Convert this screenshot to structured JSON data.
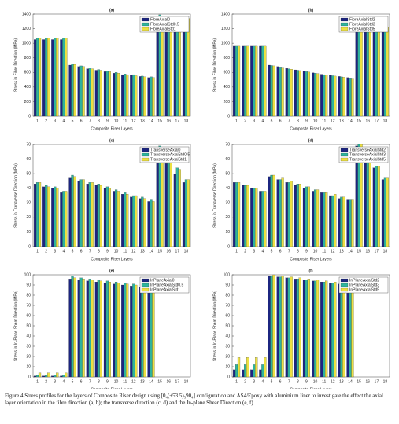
{
  "chart_data": [
    {
      "type": "bar",
      "title": "(a)",
      "xlabel": "Composite Riser Layers",
      "ylabel": "Stress in Fibre Direction (MPa)",
      "categories": [
        1,
        2,
        3,
        4,
        5,
        6,
        7,
        8,
        9,
        10,
        11,
        12,
        13,
        14,
        15,
        16,
        17,
        18
      ],
      "ylim": [
        0,
        1400
      ],
      "yticks": [
        0,
        200,
        400,
        600,
        800,
        1000,
        1200,
        1400
      ],
      "legend": "upper right",
      "series": [
        {
          "name": "FibreAxial0",
          "color": "#1c2580",
          "values": [
            1050,
            1050,
            1050,
            1050,
            700,
            680,
            650,
            630,
            610,
            590,
            570,
            560,
            545,
            530,
            1340,
            1330,
            1340,
            1320
          ]
        },
        {
          "name": "FibreAxialStd0.5",
          "color": "#2fb39c",
          "values": [
            1070,
            1070,
            1070,
            1070,
            720,
            690,
            660,
            640,
            620,
            600,
            580,
            570,
            550,
            540,
            1390,
            1360,
            1370,
            1350
          ]
        },
        {
          "name": "FibreAxialStd1",
          "color": "#ece042",
          "values": [
            1070,
            1070,
            1070,
            1070,
            710,
            680,
            650,
            630,
            610,
            590,
            570,
            555,
            540,
            530,
            1370,
            1350,
            1360,
            1340
          ]
        }
      ]
    },
    {
      "type": "bar",
      "title": "(b)",
      "xlabel": "Composite Riser Layers",
      "ylabel": "Stress in Fibre Direction (MPa)",
      "categories": [
        1,
        2,
        3,
        4,
        5,
        6,
        7,
        8,
        9,
        10,
        11,
        12,
        13,
        14,
        15,
        16,
        17,
        18
      ],
      "ylim": [
        0,
        1400
      ],
      "yticks": [
        0,
        200,
        400,
        600,
        800,
        1000,
        1200,
        1400
      ],
      "legend": "upper right",
      "series": [
        {
          "name": "FibreAxialStd2",
          "color": "#1c2580",
          "values": [
            970,
            970,
            970,
            970,
            700,
            680,
            655,
            635,
            615,
            595,
            575,
            560,
            545,
            530,
            1280,
            1260,
            1250,
            1240
          ]
        },
        {
          "name": "FibreAxialStd3",
          "color": "#2fb39c",
          "values": [
            970,
            970,
            970,
            970,
            695,
            675,
            650,
            630,
            610,
            590,
            570,
            555,
            540,
            525,
            1270,
            1250,
            1240,
            1230
          ]
        },
        {
          "name": "FibreAxialStd5",
          "color": "#ece042",
          "values": [
            970,
            970,
            970,
            970,
            690,
            670,
            645,
            625,
            605,
            585,
            565,
            550,
            535,
            520,
            1260,
            1240,
            1230,
            1220
          ]
        }
      ]
    },
    {
      "type": "bar",
      "title": "(c)",
      "xlabel": "Composite Riser Layers",
      "ylabel": "Stress in Transverse Direction (MPa)",
      "categories": [
        1,
        2,
        3,
        4,
        5,
        6,
        7,
        8,
        9,
        10,
        11,
        12,
        13,
        14,
        15,
        16,
        17,
        18
      ],
      "ylim": [
        0,
        70
      ],
      "yticks": [
        0,
        10,
        20,
        30,
        40,
        50,
        60,
        70
      ],
      "legend": "upper right",
      "series": [
        {
          "name": "TransverseAxial0",
          "color": "#1c2580",
          "values": [
            43,
            41,
            40,
            37,
            47,
            45,
            43,
            42,
            40,
            38,
            36,
            34,
            33,
            31,
            60,
            57,
            50,
            44
          ]
        },
        {
          "name": "TransverseAxialStd0.5",
          "color": "#2fb39c",
          "values": [
            44,
            42,
            41,
            38,
            49,
            46,
            44,
            43,
            41,
            39,
            37,
            35,
            34,
            32,
            69,
            61,
            54,
            46
          ]
        },
        {
          "name": "TransverseAxialStd1",
          "color": "#ece042",
          "values": [
            44,
            41,
            40,
            38,
            48,
            46,
            44,
            42,
            40,
            38,
            36,
            35,
            33,
            31,
            68,
            61,
            53,
            46
          ]
        }
      ]
    },
    {
      "type": "bar",
      "title": "(d)",
      "xlabel": "Composite Riser Layers",
      "ylabel": "Stress in Transverse Direction (MPa)",
      "categories": [
        1,
        2,
        3,
        4,
        5,
        6,
        7,
        8,
        9,
        10,
        11,
        12,
        13,
        14,
        15,
        16,
        17,
        18
      ],
      "ylim": [
        0,
        70
      ],
      "yticks": [
        0,
        10,
        20,
        30,
        40,
        50,
        60,
        70
      ],
      "legend": "upper right",
      "series": [
        {
          "name": "TransverseAxialStd2",
          "color": "#1c2580",
          "values": [
            44,
            42,
            40,
            38,
            48,
            46,
            44,
            42,
            40,
            38,
            37,
            35,
            33,
            32,
            69,
            60,
            54,
            46
          ]
        },
        {
          "name": "TransverseAxialStd3",
          "color": "#2fb39c",
          "values": [
            44,
            42,
            40,
            38,
            49,
            46,
            44,
            43,
            41,
            39,
            37,
            35,
            34,
            32,
            70,
            62,
            55,
            47
          ]
        },
        {
          "name": "TransverseAxialStd5",
          "color": "#ece042",
          "values": [
            44,
            42,
            40,
            38,
            49,
            47,
            45,
            43,
            41,
            39,
            37,
            36,
            34,
            32,
            70,
            62,
            55,
            47
          ]
        }
      ]
    },
    {
      "type": "bar",
      "title": "(e)",
      "xlabel": "Composite Riser Layers",
      "ylabel": "Stress in In-Plane Shear Direction (MPa)",
      "categories": [
        1,
        2,
        3,
        4,
        5,
        6,
        7,
        8,
        9,
        10,
        11,
        12,
        13,
        14,
        15,
        16,
        17,
        18
      ],
      "ylim": [
        0,
        100
      ],
      "yticks": [
        0,
        10,
        20,
        30,
        40,
        50,
        60,
        70,
        80,
        90,
        100
      ],
      "legend": "upper right",
      "series": [
        {
          "name": "InPlaneAxial0",
          "color": "#1c2580",
          "values": [
            1,
            1,
            1,
            1,
            96,
            95,
            94,
            93,
            92,
            91,
            90,
            89,
            88,
            87,
            0,
            0,
            0,
            0
          ]
        },
        {
          "name": "InPlaneAxialStd0.5",
          "color": "#2fb39c",
          "values": [
            2,
            2,
            2,
            2,
            99,
            97,
            96,
            95,
            94,
            93,
            92,
            91,
            90,
            89,
            0,
            0,
            0,
            0
          ]
        },
        {
          "name": "InPlaneAxialStd1",
          "color": "#ece042",
          "values": [
            4,
            4,
            4,
            4,
            97,
            96,
            95,
            94,
            93,
            92,
            91,
            90,
            89,
            88,
            0,
            0,
            0,
            0
          ]
        }
      ]
    },
    {
      "type": "bar",
      "title": "(f)",
      "xlabel": "Composite Riser Layers",
      "ylabel": "Stress in In-Plane Shear Direction (MPa)",
      "categories": [
        1,
        2,
        3,
        4,
        5,
        6,
        7,
        8,
        9,
        10,
        11,
        12,
        13,
        14,
        15,
        16,
        17,
        18
      ],
      "ylim": [
        0,
        100
      ],
      "yticks": [
        0,
        10,
        20,
        30,
        40,
        50,
        60,
        70,
        80,
        90,
        100
      ],
      "legend": "upper right",
      "series": [
        {
          "name": "InPlaneAxialStd2",
          "color": "#1c2580",
          "values": [
            7,
            7,
            7,
            7,
            99,
            98,
            97,
            96,
            95,
            94,
            93,
            92,
            91,
            89,
            0,
            0,
            0,
            0
          ]
        },
        {
          "name": "InPlaneAxialStd3",
          "color": "#2fb39c",
          "values": [
            12,
            12,
            12,
            12,
            99,
            98,
            97,
            96,
            95,
            94,
            93,
            92,
            91,
            89,
            0,
            0,
            0,
            0
          ]
        },
        {
          "name": "InPlaneAxialStd5",
          "color": "#ece042",
          "values": [
            19,
            19,
            19,
            19,
            100,
            99,
            98,
            97,
            96,
            95,
            94,
            93,
            92,
            90,
            0,
            0,
            0,
            0
          ]
        }
      ]
    }
  ],
  "caption": "Figure 4   Stress profiles for the layers of Composite Riser design using [0₄(±53.5)₅90₄] configuration and AS4/Epoxy with aluminium liner to investigate the effect the axial layer orientation in the fibre direction (a, b); the transverse direction (c, d) and the In-plane Shear Direction (e, f)."
}
